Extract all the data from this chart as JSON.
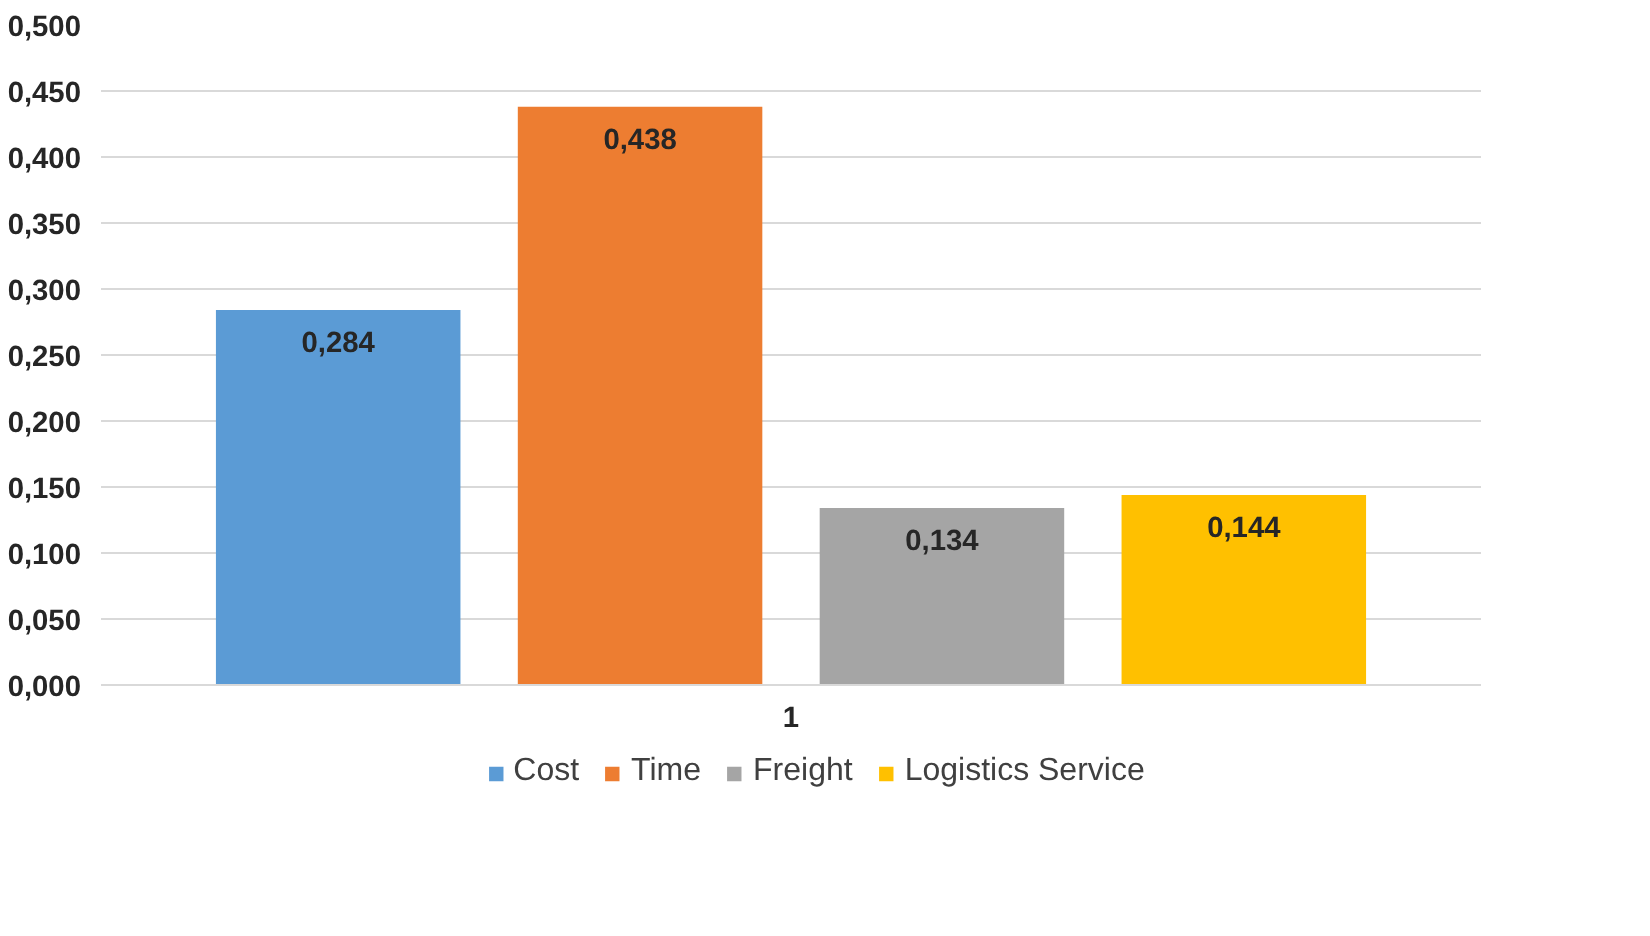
{
  "chart_data": {
    "type": "bar",
    "categories": [
      "1"
    ],
    "series": [
      {
        "name": "Cost",
        "color": "#5b9bd5",
        "values": [
          0.284
        ],
        "value_labels": [
          "0,284"
        ]
      },
      {
        "name": "Time",
        "color": "#ed7d31",
        "values": [
          0.438
        ],
        "value_labels": [
          "0,438"
        ]
      },
      {
        "name": "Freight",
        "color": "#a5a5a5",
        "values": [
          0.134
        ],
        "value_labels": [
          "0,134"
        ]
      },
      {
        "name": "Logistics Service",
        "color": "#ffc000",
        "values": [
          0.144
        ],
        "value_labels": [
          "0,144"
        ]
      }
    ],
    "ylim": [
      0,
      0.5
    ],
    "yticks": [
      {
        "value": 0,
        "label": "0,000"
      },
      {
        "value": 0.05,
        "label": "0,050"
      },
      {
        "value": 0.1,
        "label": "0,100"
      },
      {
        "value": 0.15,
        "label": "0,150"
      },
      {
        "value": 0.2,
        "label": "0,200"
      },
      {
        "value": 0.25,
        "label": "0,250"
      },
      {
        "value": 0.3,
        "label": "0,300"
      },
      {
        "value": 0.35,
        "label": "0,350"
      },
      {
        "value": 0.4,
        "label": "0,400"
      },
      {
        "value": 0.45,
        "label": "0,450"
      },
      {
        "value": 0.5,
        "label": "0,500"
      }
    ],
    "grid": "y",
    "legend": "bottom"
  }
}
